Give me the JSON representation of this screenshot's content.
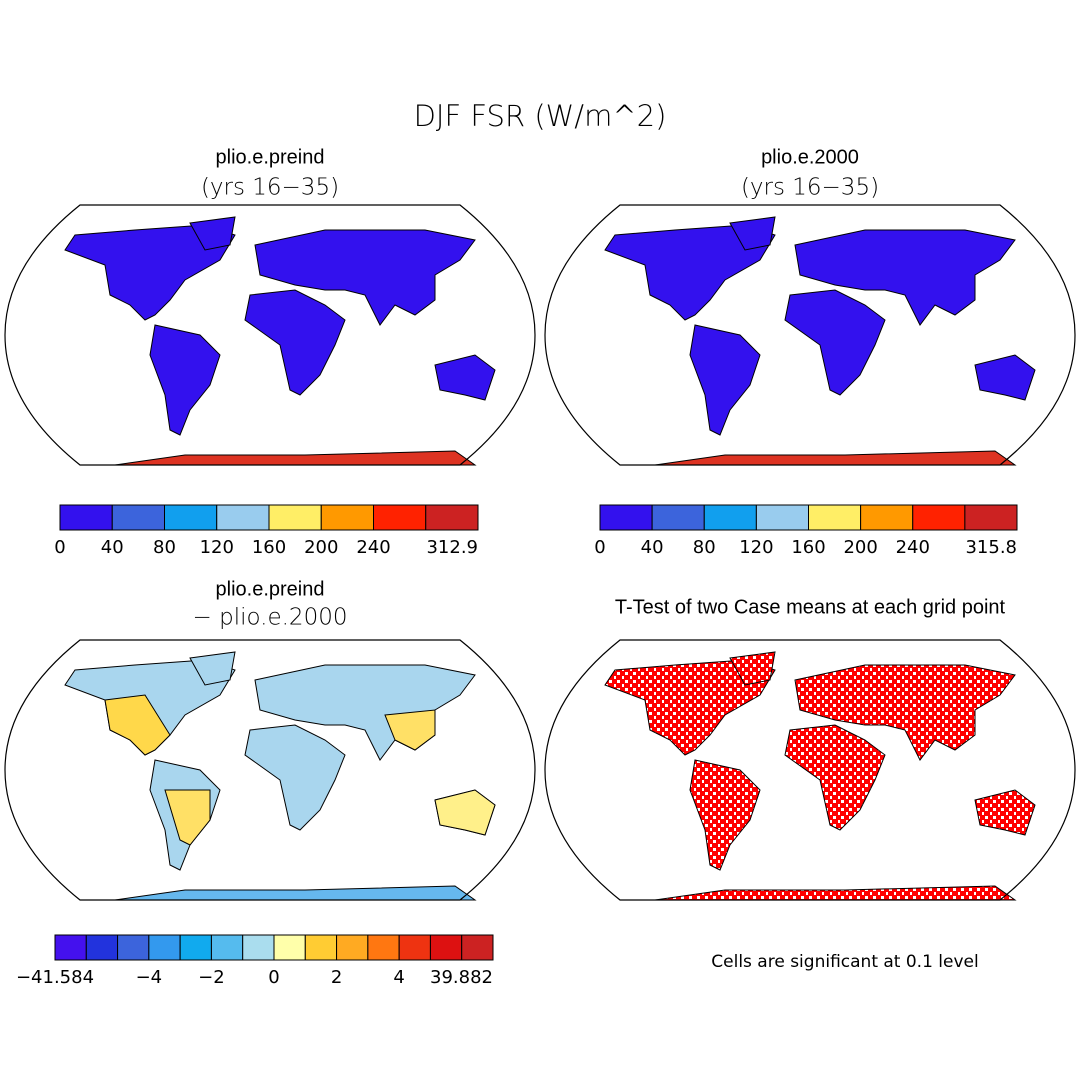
{
  "title": "DJF FSR (W/m^2)",
  "panels": [
    {
      "title": "plio.e.preind",
      "subtitle": "(yrs 16−35)",
      "colorbar": {
        "colors": [
          "#3311ee",
          "#3c64dc",
          "#119fee",
          "#99ccee",
          "#ffee66",
          "#ff9900",
          "#ff2200",
          "#cc2222"
        ],
        "labels": [
          "0",
          "40",
          "80",
          "120",
          "160",
          "200",
          "240",
          null,
          "312.9"
        ]
      }
    },
    {
      "title": "plio.e.2000",
      "subtitle": "(yrs 16−35)",
      "colorbar": {
        "colors": [
          "#3311ee",
          "#3c64dc",
          "#119fee",
          "#99ccee",
          "#ffee66",
          "#ff9900",
          "#ff2200",
          "#cc2222"
        ],
        "labels": [
          "0",
          "40",
          "80",
          "120",
          "160",
          "200",
          "240",
          null,
          "315.8"
        ]
      }
    },
    {
      "title": "plio.e.preind",
      "subtitle": "− plio.e.2000",
      "colorbar": {
        "colors": [
          "#4411ee",
          "#2233dd",
          "#3c64dc",
          "#3399ee",
          "#11aaee",
          "#55bbee",
          "#aaddee",
          "#ffffaa",
          "#ffcc33",
          "#ffaa22",
          "#ff7711",
          "#ee3311",
          "#dd1111",
          "#cc2222"
        ],
        "labels": [
          "−41.584",
          null,
          null,
          "−4",
          null,
          "−2",
          null,
          "0",
          null,
          "2",
          null,
          "4",
          null,
          null,
          "39.882"
        ]
      }
    },
    {
      "title": "T-Test of two Case means at each grid point",
      "note": "Cells are significant at 0.1 level"
    }
  ]
}
